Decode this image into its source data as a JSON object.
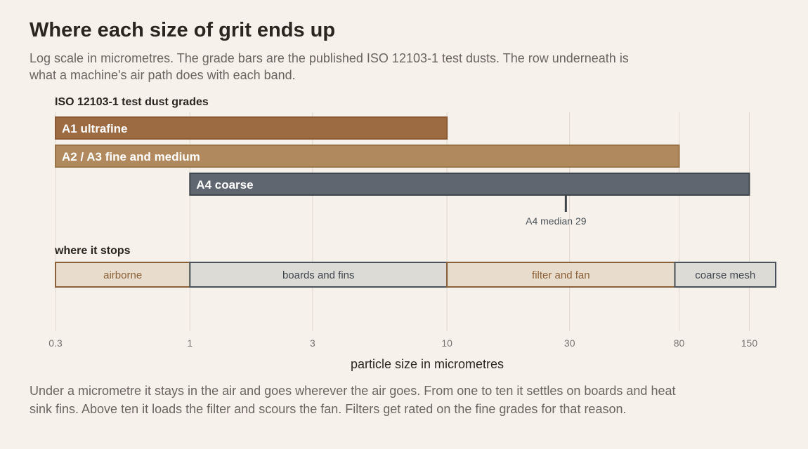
{
  "title": "Where each size of grit ends up",
  "subtitle": "Log scale in micrometres. The grade bars are the published ISO 12103-1 test dusts. The row underneath is what a machine's air path does with each band.",
  "footnote": "Under a micrometre it stays in the air and goes wherever the air goes. From one to ten it settles on boards and heat sink fins. Above ten it loads the filter and scours the fan. Filters get rated on the fine grades for that reason.",
  "colors": {
    "a1": "#9c6b42",
    "a2a3": "#b08a5e",
    "a4": "#5f6670",
    "brown_zone_fill": "#e8dccd",
    "brown_zone_stroke": "#8a6138",
    "brown_zone_text": "#8a6138",
    "grey_zone_fill": "#dcdbd6",
    "grey_zone_stroke": "#4b5259",
    "grey_zone_text": "#3f454c",
    "gridline": "#ddd7ce",
    "tick_text": "#7a7470"
  },
  "chart_data": {
    "type": "range-bar",
    "xscale": "log",
    "xlim": [
      0.3,
      190
    ],
    "xlabel": "particle size in micrometres",
    "xticks": [
      0.3,
      1,
      3,
      10,
      30,
      80,
      150
    ],
    "xtick_labels": [
      "0.3",
      "1",
      "3",
      "10",
      "30",
      "80",
      "150"
    ],
    "grades_heading": "ISO 12103-1 test dust grades",
    "grades": [
      {
        "label": "A1 ultrafine",
        "start": 0.3,
        "end": 10,
        "color_key": "a1"
      },
      {
        "label": "A2 / A3 fine and medium",
        "start": 0.3,
        "end": 80,
        "color_key": "a2a3"
      },
      {
        "label": "A4 coarse",
        "start": 1,
        "end": 150,
        "color_key": "a4"
      }
    ],
    "annotation": {
      "label": "A4 median 29",
      "value": 29
    },
    "zones_heading": "where it stops",
    "zones": [
      {
        "label": "airborne",
        "start": 0.3,
        "end": 1,
        "style": "brown"
      },
      {
        "label": "boards and fins",
        "start": 1,
        "end": 10,
        "style": "grey"
      },
      {
        "label": "filter and fan",
        "start": 10,
        "end": 77,
        "style": "brown"
      },
      {
        "label": "coarse mesh",
        "start": 77,
        "end": 190,
        "style": "grey"
      }
    ]
  }
}
